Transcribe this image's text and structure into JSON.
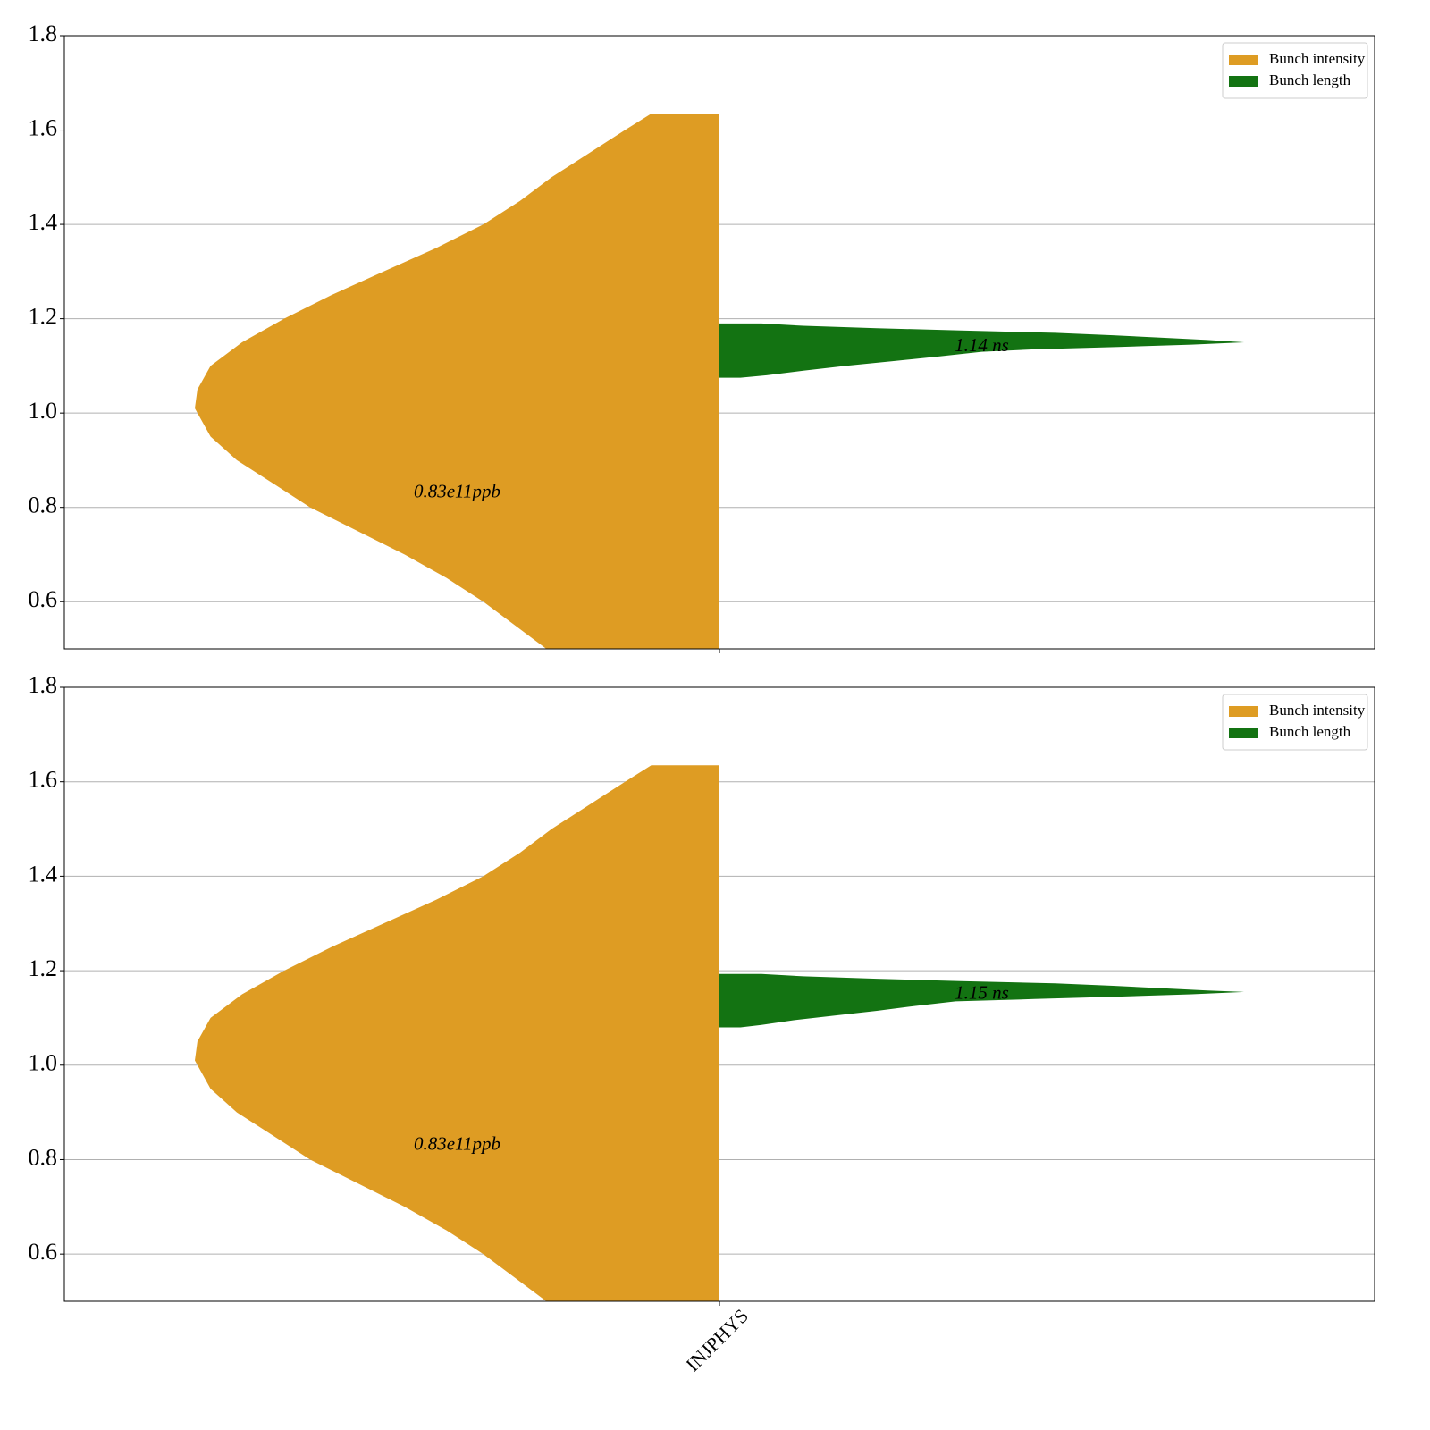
{
  "chart_data": [
    {
      "type": "violin",
      "categories": [
        null
      ],
      "ylim": [
        0.5,
        1.8
      ],
      "yticks": [
        {
          "value": 0.6,
          "label": "0.6"
        },
        {
          "value": 0.8,
          "label": "0.8"
        },
        {
          "value": 1.0,
          "label": "1.0"
        },
        {
          "value": 1.2,
          "label": "1.2"
        },
        {
          "value": 1.4,
          "label": "1.4"
        },
        {
          "value": 1.6,
          "label": "1.6"
        },
        {
          "value": 1.8,
          "label": "1.8"
        }
      ],
      "grid": true,
      "legend": "upper right",
      "series": [
        {
          "name": "Bunch intensity",
          "color": "#de9c23",
          "side": "left",
          "y": [
            1.635,
            1.6,
            1.55,
            1.5,
            1.45,
            1.4,
            1.35,
            1.3,
            1.25,
            1.2,
            1.15,
            1.1,
            1.05,
            1.01,
            0.95,
            0.9,
            0.85,
            0.8,
            0.75,
            0.7,
            0.65,
            0.6,
            0.55,
            0.5
          ],
          "density": [
            0.13,
            0.18,
            0.25,
            0.32,
            0.38,
            0.45,
            0.54,
            0.64,
            0.74,
            0.83,
            0.91,
            0.97,
            0.995,
            1.0,
            0.97,
            0.92,
            0.85,
            0.78,
            0.69,
            0.6,
            0.52,
            0.45,
            0.39,
            0.33
          ],
          "mean": 0.83,
          "mean_label": "0.83e11ppb"
        },
        {
          "name": "Bunch length",
          "color": "#137312",
          "side": "right",
          "y": [
            1.19,
            1.185,
            1.18,
            1.175,
            1.17,
            1.165,
            1.16,
            1.155,
            1.15,
            1.145,
            1.14,
            1.135,
            1.13,
            1.12,
            1.11,
            1.1,
            1.09,
            1.08,
            1.075
          ],
          "density": [
            0.08,
            0.16,
            0.3,
            0.46,
            0.64,
            0.75,
            0.84,
            0.93,
            1.0,
            0.9,
            0.76,
            0.6,
            0.5,
            0.42,
            0.33,
            0.24,
            0.16,
            0.09,
            0.04
          ],
          "mean": 1.14,
          "mean_label": "1.14 ns"
        }
      ]
    },
    {
      "type": "violin",
      "categories": [
        "INJPHYS"
      ],
      "ylim": [
        0.5,
        1.8
      ],
      "yticks": [
        {
          "value": 0.6,
          "label": "0.6"
        },
        {
          "value": 0.8,
          "label": "0.8"
        },
        {
          "value": 1.0,
          "label": "1.0"
        },
        {
          "value": 1.2,
          "label": "1.2"
        },
        {
          "value": 1.4,
          "label": "1.4"
        },
        {
          "value": 1.6,
          "label": "1.6"
        },
        {
          "value": 1.8,
          "label": "1.8"
        }
      ],
      "grid": true,
      "legend": "upper right",
      "series": [
        {
          "name": "Bunch intensity",
          "color": "#de9c23",
          "side": "left",
          "y": [
            1.635,
            1.6,
            1.55,
            1.5,
            1.45,
            1.4,
            1.35,
            1.3,
            1.25,
            1.2,
            1.15,
            1.1,
            1.05,
            1.01,
            0.95,
            0.9,
            0.85,
            0.8,
            0.75,
            0.7,
            0.65,
            0.6,
            0.55,
            0.5
          ],
          "density": [
            0.13,
            0.18,
            0.25,
            0.32,
            0.38,
            0.45,
            0.54,
            0.64,
            0.74,
            0.83,
            0.91,
            0.97,
            0.995,
            1.0,
            0.97,
            0.92,
            0.85,
            0.78,
            0.69,
            0.6,
            0.52,
            0.45,
            0.39,
            0.33
          ],
          "mean": 0.83,
          "mean_label": "0.83e11ppb"
        },
        {
          "name": "Bunch length",
          "color": "#137312",
          "side": "right",
          "y": [
            1.193,
            1.188,
            1.183,
            1.178,
            1.173,
            1.168,
            1.163,
            1.158,
            1.155,
            1.15,
            1.145,
            1.14,
            1.135,
            1.125,
            1.115,
            1.105,
            1.095,
            1.085,
            1.08
          ],
          "density": [
            0.08,
            0.16,
            0.3,
            0.46,
            0.64,
            0.75,
            0.84,
            0.93,
            1.0,
            0.9,
            0.76,
            0.6,
            0.45,
            0.37,
            0.3,
            0.22,
            0.14,
            0.08,
            0.04
          ],
          "mean": 1.15,
          "mean_label": "1.15 ns"
        }
      ]
    }
  ]
}
